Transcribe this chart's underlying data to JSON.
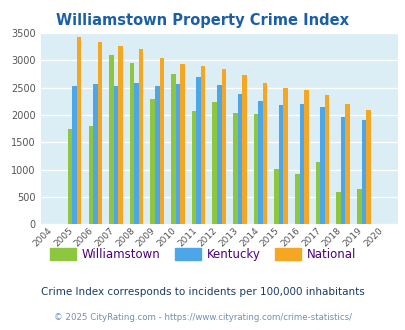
{
  "title": "Williamstown Property Crime Index",
  "years": [
    "2004",
    "2005",
    "2006",
    "2007",
    "2008",
    "2009",
    "2010",
    "2011",
    "2012",
    "2013",
    "2014",
    "2015",
    "2016",
    "2017",
    "2018",
    "2019",
    "2020"
  ],
  "williamstown": [
    0,
    1750,
    1800,
    3100,
    2950,
    2300,
    2750,
    2070,
    2230,
    2040,
    2010,
    1020,
    920,
    1140,
    600,
    645,
    0
  ],
  "kentucky": [
    0,
    2530,
    2560,
    2530,
    2580,
    2530,
    2560,
    2690,
    2550,
    2380,
    2260,
    2180,
    2200,
    2140,
    1970,
    1900,
    0
  ],
  "national": [
    0,
    3420,
    3340,
    3270,
    3200,
    3040,
    2940,
    2890,
    2850,
    2730,
    2590,
    2490,
    2460,
    2360,
    2210,
    2100,
    0
  ],
  "bar_width": 0.22,
  "ylim": [
    0,
    3500
  ],
  "yticks": [
    0,
    500,
    1000,
    1500,
    2000,
    2500,
    3000,
    3500
  ],
  "color_williamstown": "#8dc63f",
  "color_kentucky": "#4da6e8",
  "color_national": "#f5a623",
  "bg_color": "#dceef5",
  "title_color": "#1a5fa8",
  "legend_label_color": "#4b0082",
  "footnote1": "Crime Index corresponds to incidents per 100,000 inhabitants",
  "footnote1_color": "#1a3a6a",
  "footnote2": "© 2025 CityRating.com - https://www.cityrating.com/crime-statistics/",
  "footnote2_color": "#7090b0",
  "legend_labels": [
    "Williamstown",
    "Kentucky",
    "National"
  ]
}
